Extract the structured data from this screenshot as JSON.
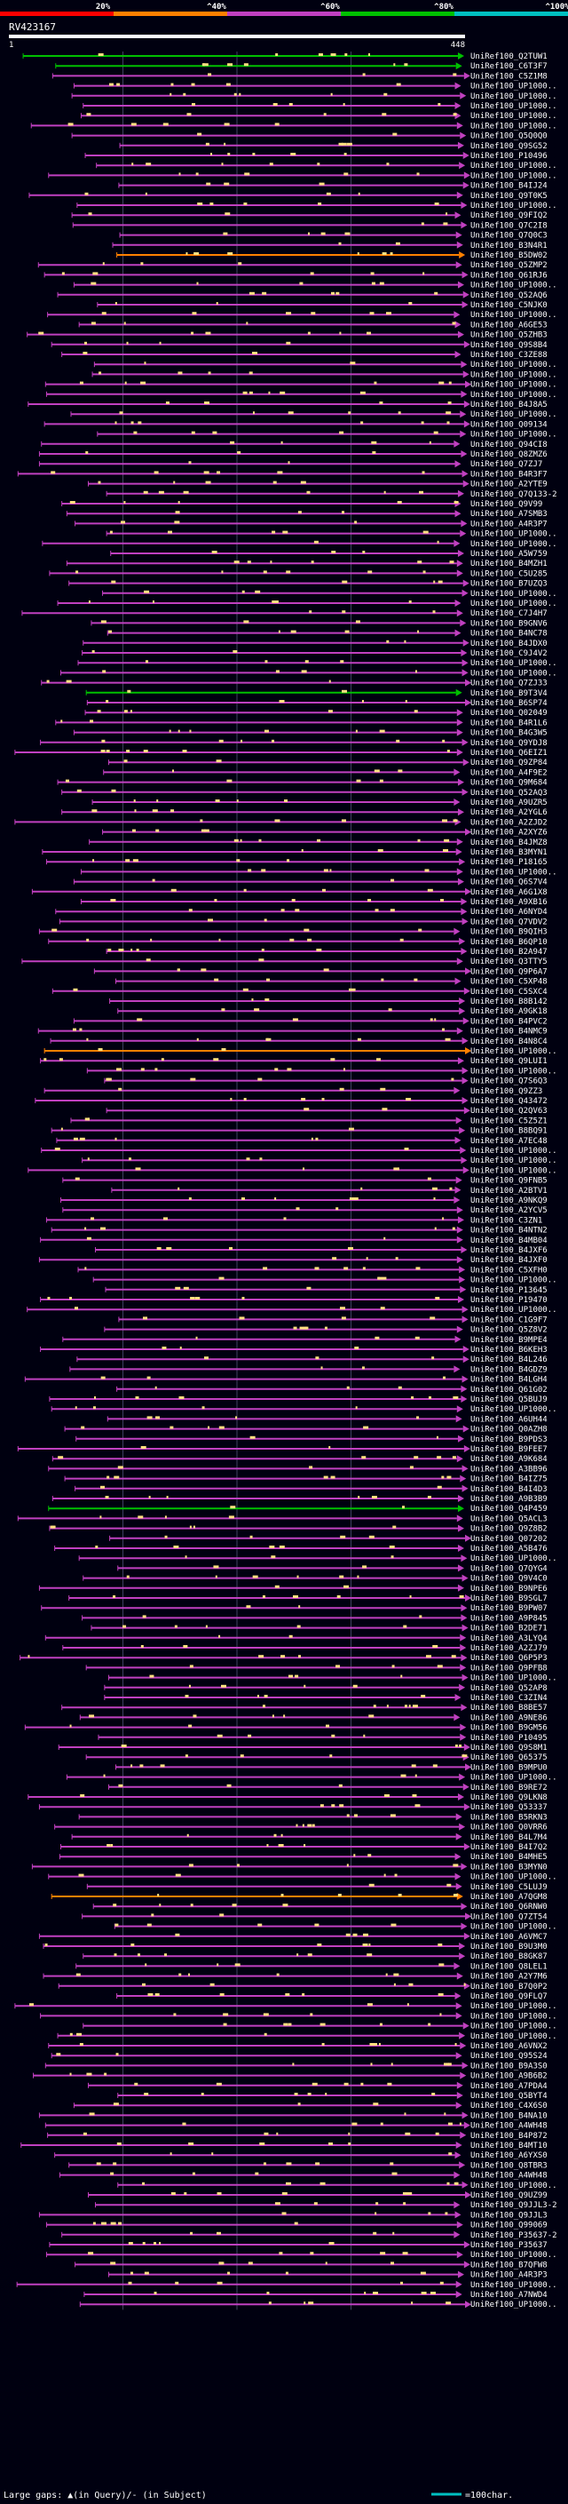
{
  "chart_data": {
    "type": "alignment-overview",
    "title": "RV423167",
    "query_start": "1",
    "query_end": "448",
    "legend_percent": [
      "20%",
      "^40%",
      "^60%",
      "^80%",
      "^100%"
    ],
    "colors": {
      "background": "#000010",
      "seg_lt20": "#ff0000",
      "seg_20_40": "#ff8000",
      "seg_40_60": "#c040c0",
      "seg_60_80": "#00c000",
      "seg_80_100": "#00c0c0",
      "hit_line": "#c040c0",
      "hit_green": "#00c000",
      "hit_orange": "#ff8000",
      "gap_mark": "#ffe080",
      "grid": "#404060",
      "scale_line": "#00c0c0"
    },
    "footer": {
      "large_gaps": "Large gaps: ▲(in Query)/- (in Subject)",
      "scale": "=100char."
    },
    "hits": [
      "UniRef100_Q2TUW1",
      "UniRef100_C6T3F7",
      "UniRef100_C5Z1M8",
      "UniRef100_UP1000..",
      "UniRef100_UP1000..",
      "UniRef100_UP1000..",
      "UniRef100_UP1000..",
      "UniRef100_UP1000..",
      "UniRef100_Q5Q0Q0",
      "UniRef100_Q9SG52",
      "UniRef100_P10496",
      "UniRef100_UP1000..",
      "UniRef100_UP1000..",
      "UniRef100_B4IJ24",
      "UniRef100_Q9T0K5",
      "UniRef100_UP1000..",
      "UniRef100_Q9FIQ2",
      "UniRef100_Q7C2I8",
      "UniRef100_Q7Q0C3",
      "UniRef100_B3N4R1",
      "UniRef100_B5DW02",
      "UniRef100_Q5ZMP2",
      "UniRef100_Q61RJ6",
      "UniRef100_UP1000..",
      "UniRef100_Q52AQ6",
      "UniRef100_C5NJK0",
      "UniRef100_UP1000..",
      "UniRef100_A6GE53",
      "UniRef100_Q5ZHB3",
      "UniRef100_Q9S8B4",
      "UniRef100_C3ZE88",
      "UniRef100_UP1000..",
      "UniRef100_UP1000..",
      "UniRef100_UP1000..",
      "UniRef100_UP1000..",
      "UniRef100_B4J8A5",
      "UniRef100_UP1000..",
      "UniRef100_Q09134",
      "UniRef100_UP1000..",
      "UniRef100_Q94CI8",
      "UniRef100_Q8ZMZ6",
      "UniRef100_Q7ZJ7",
      "UniRef100_B4R3F7",
      "UniRef100_A2YTE9",
      "UniRef100_Q7Q133-2",
      "UniRef100_Q9V99",
      "UniRef100_A7SMB3",
      "UniRef100_A4R3P7",
      "UniRef100_UP1000..",
      "UniRef100_UP1000..",
      "UniRef100_A5W759",
      "UniRef100_B4MZH1",
      "UniRef100_C5U285",
      "UniRef100_B7UZQ3",
      "UniRef100_UP1000..",
      "UniRef100_UP1000..",
      "UniRef100_C7J4H7",
      "UniRef100_B9GNV6",
      "UniRef100_B4NC78",
      "UniRef100_B4JDX0",
      "UniRef100_C9J4V2",
      "UniRef100_UP1000..",
      "UniRef100_UP1000..",
      "UniRef100_Q7ZJ33",
      "UniRef100_B9T3V4",
      "UniRef100_B6SP74",
      "UniRef100_Q02049",
      "UniRef100_B4R1L6",
      "UniRef100_B4G3W5",
      "UniRef100_Q9YDJ8",
      "UniRef100_Q6EIZ1",
      "UniRef100_Q9ZP84",
      "UniRef100_A4F9E2",
      "UniRef100_Q9M684",
      "UniRef100_Q52AQ3",
      "UniRef100_A9UZR5",
      "UniRef100_A2YGL6",
      "UniRef100_A2ZJD2",
      "UniRef100_A2XYZ6",
      "UniRef100_B4JMZ8",
      "UniRef100_B3MYN1",
      "UniRef100_P18165",
      "UniRef100_UP1000..",
      "UniRef100_Q6S7V4",
      "UniRef100_A6G1X8",
      "UniRef100_A9XB16",
      "UniRef100_A6NYD4",
      "UniRef100_Q7VDV2",
      "UniRef100_B9QIH3",
      "UniRef100_B6QP10",
      "UniRef100_B2A947",
      "UniRef100_Q3TTY5",
      "UniRef100_Q9P6A7",
      "UniRef100_C5XP48",
      "UniRef100_C5SXC4",
      "UniRef100_B8B142",
      "UniRef100_A9GK18",
      "UniRef100_B4PVC2",
      "UniRef100_B4NMC9",
      "UniRef100_B4N8C4",
      "UniRef100_UP1000..",
      "UniRef100_Q9LUI1",
      "UniRef100_UP1000..",
      "UniRef100_Q7S6Q3",
      "UniRef100_Q9ZZ3",
      "UniRef100_Q43472",
      "UniRef100_Q2QV63",
      "UniRef100_C5Z5Z1",
      "UniRef100_B8BQ91",
      "UniRef100_A7EC48",
      "UniRef100_UP1000..",
      "UniRef100_UP1000..",
      "UniRef100_UP1000..",
      "UniRef100_Q9FNB5",
      "UniRef100_A2BTV1",
      "UniRef100_A9NKQ9",
      "UniRef100_A2YCV5",
      "UniRef100_C3ZN1",
      "UniRef100_B4NTN2",
      "UniRef100_B4MB04",
      "UniRef100_B4JXF6",
      "UniRef100_B4JXF0",
      "UniRef100_C5XFH0",
      "UniRef100_UP1000..",
      "UniRef100_P13645",
      "UniRef100_P19470",
      "UniRef100_UP1000..",
      "UniRef100_C1G9F7",
      "UniRef100_Q5Z8V2",
      "UniRef100_B9MPE4",
      "UniRef100_B6KEH3",
      "UniRef100_B4L246",
      "UniRef100_B4GDZ9",
      "UniRef100_B4LGH4",
      "UniRef100_Q61G02",
      "UniRef100_Q5BUJ9",
      "UniRef100_UP1000..",
      "UniRef100_A6UH44",
      "UniRef100_Q0AZH8",
      "UniRef100_B9PDS3",
      "UniRef100_B9FEE7",
      "UniRef100_A9K684",
      "UniRef100_A3BB96",
      "UniRef100_B4IZ75",
      "UniRef100_B4I4D3",
      "UniRef100_A9B3B9",
      "UniRef100_Q4P459",
      "UniRef100_Q5ACL3",
      "UniRef100_Q9Z8B2",
      "UniRef100_Q07202",
      "UniRef100_A5B476",
      "UniRef100_UP1000..",
      "UniRef100_Q7QYG4",
      "UniRef100_Q9V4C0",
      "UniRef100_B9NPE6",
      "UniRef100_B9SGL7",
      "UniRef100_B9PW07",
      "UniRef100_A9P845",
      "UniRef100_B2DE71",
      "UniRef100_A3LYQ4",
      "UniRef100_A2ZJ79",
      "UniRef100_Q6P5P3",
      "UniRef100_Q9PFB8",
      "UniRef100_UP1000..",
      "UniRef100_Q52AP8",
      "UniRef100_C3ZIN4",
      "UniRef100_B8BE57",
      "UniRef100_A9NE86",
      "UniRef100_B9GM56",
      "UniRef100_P10495",
      "UniRef100_Q9S8M1",
      "UniRef100_Q65375",
      "UniRef100_B9MPU0",
      "UniRef100_UP1000..",
      "UniRef100_B9RE72",
      "UniRef100_Q9LKN8",
      "UniRef100_Q53337",
      "UniRef100_B5RKN3",
      "UniRef100_Q0VRR6",
      "UniRef100_B4L7M4",
      "UniRef100_B4I7Q2",
      "UniRef100_B4MHE5",
      "UniRef100_B3MYN0",
      "UniRef100_UP1000..",
      "UniRef100_C5LUJ9",
      "UniRef100_A7QGM8",
      "UniRef100_Q6RNW0",
      "UniRef100_Q7ZT54",
      "UniRef100_UP1000..",
      "UniRef100_A6VMC7",
      "UniRef100_B9U3M0",
      "UniRef100_B8GK87",
      "UniRef100_Q8LEL1",
      "UniRef100_A2Y7M6",
      "UniRef100_B7Q0P2",
      "UniRef100_Q9FLQ7",
      "UniRef100_UP1000..",
      "UniRef100_UP1000..",
      "UniRef100_UP1000..",
      "UniRef100_UP1000..",
      "UniRef100_A6VNX2",
      "UniRef100_Q95S24",
      "UniRef100_B9A3S0",
      "UniRef100_A9B6B2",
      "UniRef100_A7PDA4",
      "UniRef100_Q5BYT4",
      "UniRef100_C4X6S0",
      "UniRef100_B4NA10",
      "UniRef100_A4WH48",
      "UniRef100_B4P872",
      "UniRef100_B4MT10",
      "UniRef100_A6YXS0",
      "UniRef100_Q8TBR3",
      "UniRef100_A4WH48",
      "UniRef100_UP1000..",
      "UniRef100_Q9UZ99",
      "UniRef100_Q9JJL3-2",
      "UniRef100_Q9JJL3",
      "UniRef100_Q99069",
      "UniRef100_P35637-2",
      "UniRef100_P35637",
      "UniRef100_UP1000..",
      "UniRef100_B7QFW8",
      "UniRef100_A4R3P3",
      "UniRef100_UP1000..",
      "UniRef100_A7NWD4",
      "UniRef100_UP1000.."
    ]
  }
}
